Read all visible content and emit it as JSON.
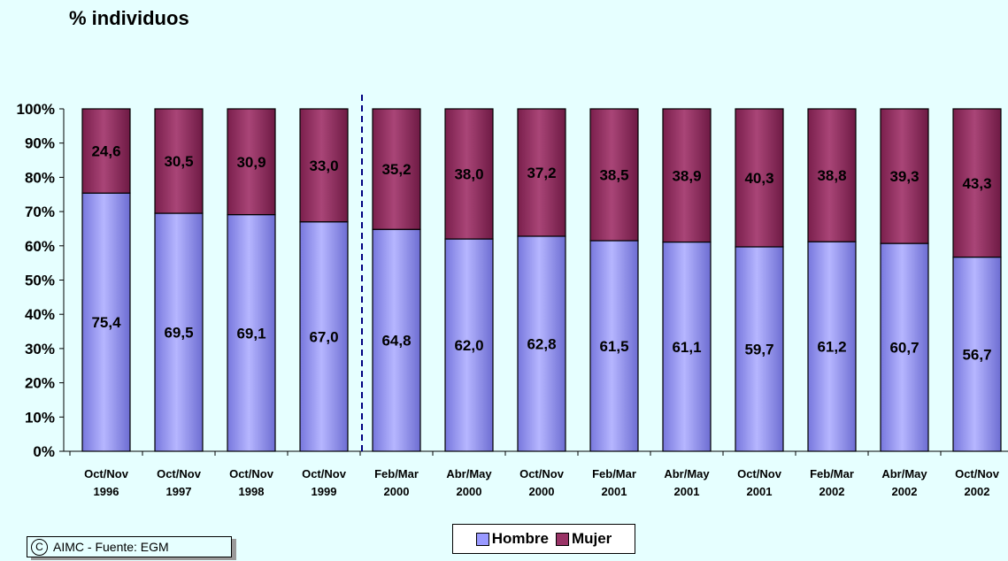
{
  "title": "% individuos",
  "copyright_symbol": "C",
  "copyright_text": "AIMC - Fuente: EGM",
  "colors": {
    "background": "#e6ffff",
    "hombre": "#9999ff",
    "mujer": "#993366",
    "divider": "#000080"
  },
  "chart_data": {
    "type": "bar",
    "stacked": true,
    "percent_axis": true,
    "categories": [
      [
        "Oct/Nov",
        "1996"
      ],
      [
        "Oct/Nov",
        "1997"
      ],
      [
        "Oct/Nov",
        "1998"
      ],
      [
        "Oct/Nov",
        "1999"
      ],
      [
        "Feb/Mar",
        "2000"
      ],
      [
        "Abr/May",
        "2000"
      ],
      [
        "Oct/Nov",
        "2000"
      ],
      [
        "Feb/Mar",
        "2001"
      ],
      [
        "Abr/May",
        "2001"
      ],
      [
        "Oct/Nov",
        "2001"
      ],
      [
        "Feb/Mar",
        "2002"
      ],
      [
        "Abr/May",
        "2002"
      ],
      [
        "Oct/Nov",
        "2002"
      ]
    ],
    "series": [
      {
        "name": "Hombre",
        "values": [
          75.4,
          69.5,
          69.1,
          67.0,
          64.8,
          62.0,
          62.8,
          61.5,
          61.1,
          59.7,
          61.2,
          60.7,
          56.7
        ],
        "labels": [
          "75,4",
          "69,5",
          "69,1",
          "67,0",
          "64,8",
          "62,0",
          "62,8",
          "61,5",
          "61,1",
          "59,7",
          "61,2",
          "60,7",
          "56,7"
        ]
      },
      {
        "name": "Mujer",
        "values": [
          24.6,
          30.5,
          30.9,
          33.0,
          35.2,
          38.0,
          37.2,
          38.5,
          38.9,
          40.3,
          38.8,
          39.3,
          43.3
        ],
        "labels": [
          "24,6",
          "30,5",
          "30,9",
          "33,0",
          "35,2",
          "38,0",
          "37,2",
          "38,5",
          "38,9",
          "40,3",
          "38,8",
          "39,3",
          "43,3"
        ]
      }
    ],
    "ylim": [
      0,
      100
    ],
    "yticks": [
      "0%",
      "10%",
      "20%",
      "30%",
      "40%",
      "50%",
      "60%",
      "70%",
      "80%",
      "90%",
      "100%"
    ],
    "divider_after_index": 3,
    "legend_position": "bottom"
  }
}
